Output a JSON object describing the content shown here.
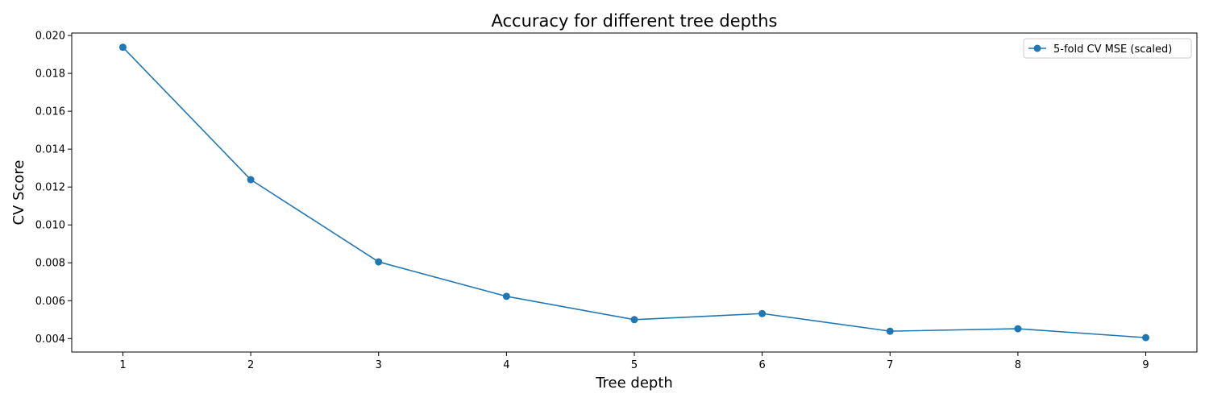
{
  "chart_data": {
    "type": "line",
    "title": "Accuracy for different tree depths",
    "xlabel": "Tree depth",
    "ylabel": "CV Score",
    "x": [
      1,
      2,
      3,
      4,
      5,
      6,
      7,
      8,
      9
    ],
    "series": [
      {
        "name": "5-fold CV MSE (scaled)",
        "values": [
          0.01938,
          0.01239,
          0.00805,
          0.00623,
          0.005,
          0.00532,
          0.00439,
          0.00452,
          0.00405
        ],
        "color": "#1f77b4",
        "marker": "circle"
      }
    ],
    "xticks": [
      "1",
      "2",
      "3",
      "4",
      "5",
      "6",
      "7",
      "8",
      "9"
    ],
    "yticks": [
      "0.004",
      "0.006",
      "0.008",
      "0.010",
      "0.012",
      "0.014",
      "0.016",
      "0.018",
      "0.020"
    ],
    "ytick_values": [
      0.004,
      0.006,
      0.008,
      0.01,
      0.012,
      0.014,
      0.016,
      0.018,
      0.02
    ],
    "xlim": [
      0.6,
      9.4
    ],
    "ylim": [
      0.00329,
      0.02013
    ],
    "grid": false,
    "legend_position": "top-right"
  }
}
